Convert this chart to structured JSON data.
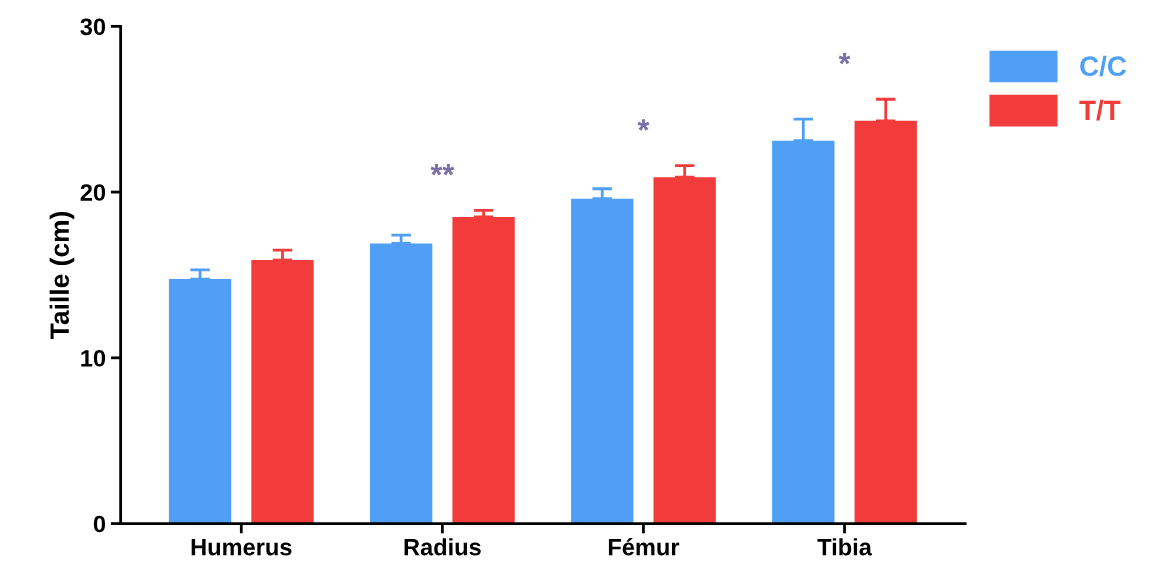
{
  "chart_data": {
    "type": "bar",
    "ylabel": "Taille (cm)",
    "categories": [
      "Humerus",
      "Radius",
      "Fémur",
      "Tibia"
    ],
    "series": [
      {
        "name": "C/C",
        "color": "#4e9ff5",
        "values": [
          14.75,
          16.9,
          19.6,
          23.1
        ],
        "errors": [
          [
            14.75,
            15.3
          ],
          [
            16.9,
            17.4
          ],
          [
            19.6,
            20.2
          ],
          [
            23.1,
            24.4
          ]
        ]
      },
      {
        "name": "T/T",
        "color": "#f23b3b",
        "values": [
          15.9,
          18.5,
          20.9,
          24.3
        ],
        "errors": [
          [
            15.9,
            16.5
          ],
          [
            18.5,
            18.9
          ],
          [
            20.9,
            21.6
          ],
          [
            24.3,
            25.6
          ]
        ]
      }
    ],
    "annotations": [
      "**",
      "*",
      "*"
    ],
    "ylim": [
      0,
      30
    ],
    "yticks": [
      0,
      10,
      20,
      30
    ],
    "grid": false,
    "legend": "top right"
  }
}
